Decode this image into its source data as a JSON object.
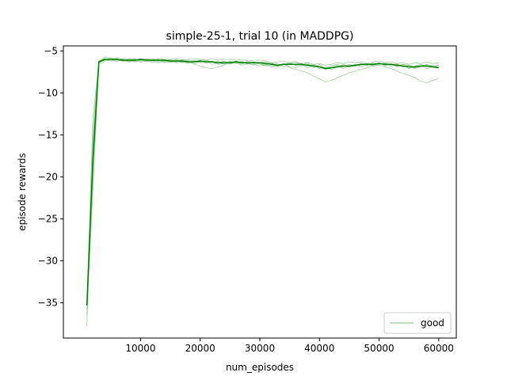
{
  "chart_data": {
    "type": "line",
    "title": "simple-25-1, trial 10 (in MADDPG)",
    "xlabel": "num_episodes",
    "ylabel": "episode rewards",
    "xlim": [
      -2950,
      62950
    ],
    "ylim": [
      -39.2,
      -4.4
    ],
    "xticks": [
      10000,
      20000,
      30000,
      40000,
      50000,
      60000
    ],
    "xtick_labels": [
      "10000",
      "20000",
      "30000",
      "40000",
      "50000",
      "60000"
    ],
    "yticks": [
      -35,
      -30,
      -25,
      -20,
      -15,
      -10,
      -5
    ],
    "ytick_labels": [
      "−35",
      "−30",
      "−25",
      "−20",
      "−15",
      "−10",
      "−5"
    ],
    "grid": false,
    "legend": {
      "position": "lower-right",
      "entries": [
        "good"
      ]
    },
    "colors": {
      "mean": "#008000",
      "trial": "#7fbf7f"
    },
    "x": [
      1000,
      2000,
      3000,
      4000,
      5000,
      6000,
      7000,
      8000,
      9000,
      10000,
      11000,
      12000,
      13000,
      14000,
      15000,
      16000,
      17000,
      18000,
      19000,
      20000,
      21000,
      22000,
      23000,
      24000,
      25000,
      26000,
      27000,
      28000,
      29000,
      30000,
      31000,
      32000,
      33000,
      34000,
      35000,
      36000,
      37000,
      38000,
      39000,
      40000,
      41000,
      42000,
      43000,
      44000,
      45000,
      46000,
      47000,
      48000,
      49000,
      50000,
      51000,
      52000,
      53000,
      54000,
      55000,
      56000,
      57000,
      58000,
      59000,
      60000
    ],
    "series": [
      {
        "values": [
          -35.3,
          -18.0,
          -6.3,
          -6.0,
          -6.0,
          -6.0,
          -6.1,
          -6.1,
          -6.1,
          -6.0,
          -6.1,
          -6.1,
          -6.1,
          -6.1,
          -6.2,
          -6.2,
          -6.2,
          -6.3,
          -6.3,
          -6.2,
          -6.3,
          -6.3,
          -6.4,
          -6.4,
          -6.4,
          -6.3,
          -6.4,
          -6.4,
          -6.4,
          -6.4,
          -6.5,
          -6.6,
          -6.7,
          -6.6,
          -6.6,
          -6.6,
          -6.6,
          -6.7,
          -6.8,
          -6.9,
          -7.1,
          -7.0,
          -6.9,
          -6.8,
          -6.8,
          -6.7,
          -6.6,
          -6.6,
          -6.6,
          -6.5,
          -6.6,
          -6.6,
          -6.7,
          -6.8,
          -6.9,
          -6.9,
          -6.8,
          -6.8,
          -6.9,
          -7.0
        ]
      },
      {
        "values": [
          -37.8,
          -14.5,
          -6.4,
          -6.1,
          -5.8,
          -6.0,
          -6.2,
          -6.3,
          -6.0,
          -6.2,
          -6.1,
          -6.4,
          -6.0,
          -6.4,
          -6.1,
          -6.3,
          -6.1,
          -6.4,
          -6.2,
          -6.1,
          -6.5,
          -6.2,
          -6.5,
          -6.2,
          -6.6,
          -6.3,
          -6.6,
          -6.2,
          -6.5,
          -6.4,
          -6.3,
          -6.6,
          -6.5,
          -6.9,
          -6.5,
          -6.3,
          -6.7,
          -6.4,
          -7.0,
          -6.6,
          -7.1,
          -6.8,
          -6.7,
          -7.1,
          -6.8,
          -6.6,
          -6.9,
          -6.5,
          -6.7,
          -6.4,
          -6.8,
          -6.5,
          -6.9,
          -6.6,
          -7.1,
          -6.8,
          -6.6,
          -6.9,
          -6.7,
          -7.0
        ]
      },
      {
        "values": [
          -34.6,
          -20.2,
          -6.2,
          -5.9,
          -6.1,
          -5.8,
          -6.0,
          -6.0,
          -6.3,
          -6.1,
          -6.0,
          -5.9,
          -6.2,
          -6.0,
          -6.3,
          -6.3,
          -6.0,
          -6.2,
          -6.5,
          -6.3,
          -6.1,
          -6.4,
          -6.2,
          -6.6,
          -6.3,
          -6.5,
          -6.2,
          -6.6,
          -6.3,
          -6.5,
          -6.7,
          -6.4,
          -6.8,
          -6.5,
          -6.9,
          -7.0,
          -6.6,
          -7.0,
          -6.7,
          -7.1,
          -6.9,
          -7.2,
          -6.9,
          -6.6,
          -6.9,
          -6.8,
          -6.5,
          -6.7,
          -6.4,
          -6.6,
          -6.4,
          -6.7,
          -6.5,
          -6.9,
          -6.7,
          -7.1,
          -6.9,
          -6.6,
          -6.9,
          -6.8
        ]
      },
      {
        "values": [
          -35.8,
          -16.8,
          -6.5,
          -6.2,
          -6.0,
          -6.3,
          -5.9,
          -6.2,
          -6.2,
          -5.9,
          -6.3,
          -6.2,
          -6.4,
          -6.2,
          -6.0,
          -6.4,
          -6.3,
          -6.5,
          -6.1,
          -6.4,
          -6.2,
          -6.6,
          -6.4,
          -6.2,
          -6.5,
          -6.4,
          -6.7,
          -6.5,
          -6.6,
          -6.8,
          -6.6,
          -6.9,
          -6.7,
          -6.5,
          -7.0,
          -7.2,
          -7.4,
          -7.6,
          -8.0,
          -8.3,
          -8.7,
          -8.5,
          -8.2,
          -7.9,
          -7.6,
          -7.4,
          -7.2,
          -7.0,
          -6.8,
          -6.7,
          -6.9,
          -7.1,
          -7.4,
          -7.7,
          -7.9,
          -8.2,
          -8.6,
          -8.8,
          -8.5,
          -8.3
        ]
      },
      {
        "values": [
          -34.9,
          -13.0,
          -6.3,
          -5.7,
          -5.9,
          -6.1,
          -6.2,
          -5.9,
          -6.0,
          -6.0,
          -5.9,
          -6.1,
          -5.9,
          -6.0,
          -6.0,
          -5.9,
          -6.1,
          -6.0,
          -5.9,
          -6.0,
          -6.1,
          -5.9,
          -6.1,
          -6.0,
          -6.0,
          -6.1,
          -6.0,
          -6.2,
          -6.1,
          -6.1,
          -6.2,
          -6.4,
          -6.3,
          -6.2,
          -6.4,
          -6.3,
          -6.5,
          -6.4,
          -6.6,
          -6.5,
          -6.7,
          -6.6,
          -6.4,
          -6.5,
          -6.3,
          -6.4,
          -6.3,
          -6.5,
          -6.3,
          -6.2,
          -6.4,
          -6.3,
          -6.5,
          -6.4,
          -6.6,
          -6.4,
          -6.5,
          -6.3,
          -6.5,
          -6.4
        ]
      },
      {
        "values": [
          -36.4,
          -21.5,
          -6.4,
          -6.0,
          -6.2,
          -6.1,
          -6.0,
          -6.3,
          -6.2,
          -6.3,
          -6.2,
          -6.0,
          -6.3,
          -6.2,
          -6.4,
          -6.1,
          -6.4,
          -6.3,
          -6.6,
          -6.8,
          -7.0,
          -7.1,
          -6.9,
          -6.7,
          -6.4,
          -6.2,
          -6.4,
          -6.5,
          -6.3,
          -6.6,
          -6.8,
          -6.7,
          -6.9,
          -6.6,
          -6.4,
          -6.7,
          -6.5,
          -6.8,
          -6.6,
          -6.9,
          -7.2,
          -7.0,
          -6.8,
          -6.9,
          -6.6,
          -6.8,
          -6.7,
          -6.5,
          -6.8,
          -6.6,
          -6.5,
          -6.8,
          -6.6,
          -6.9,
          -6.7,
          -7.0,
          -6.8,
          -7.1,
          -6.9,
          -6.8
        ]
      },
      {
        "values": [
          -35.0,
          -15.9,
          -6.3,
          -6.1,
          -6.0,
          -5.9,
          -6.2,
          -6.0,
          -5.9,
          -6.2,
          -6.0,
          -6.2,
          -6.0,
          -6.3,
          -6.2,
          -6.0,
          -6.3,
          -6.1,
          -6.2,
          -6.4,
          -6.1,
          -6.3,
          -6.6,
          -6.5,
          -6.2,
          -6.4,
          -6.3,
          -6.5,
          -6.7,
          -6.4,
          -6.6,
          -6.5,
          -6.8,
          -6.6,
          -6.5,
          -6.7,
          -6.8,
          -6.6,
          -6.8,
          -6.9,
          -7.0,
          -6.8,
          -6.6,
          -6.8,
          -6.9,
          -6.7,
          -6.6,
          -6.8,
          -6.7,
          -6.5,
          -6.7,
          -6.6,
          -6.8,
          -6.6,
          -6.7,
          -6.9,
          -6.8,
          -6.7,
          -6.8,
          -6.7
        ]
      }
    ]
  }
}
